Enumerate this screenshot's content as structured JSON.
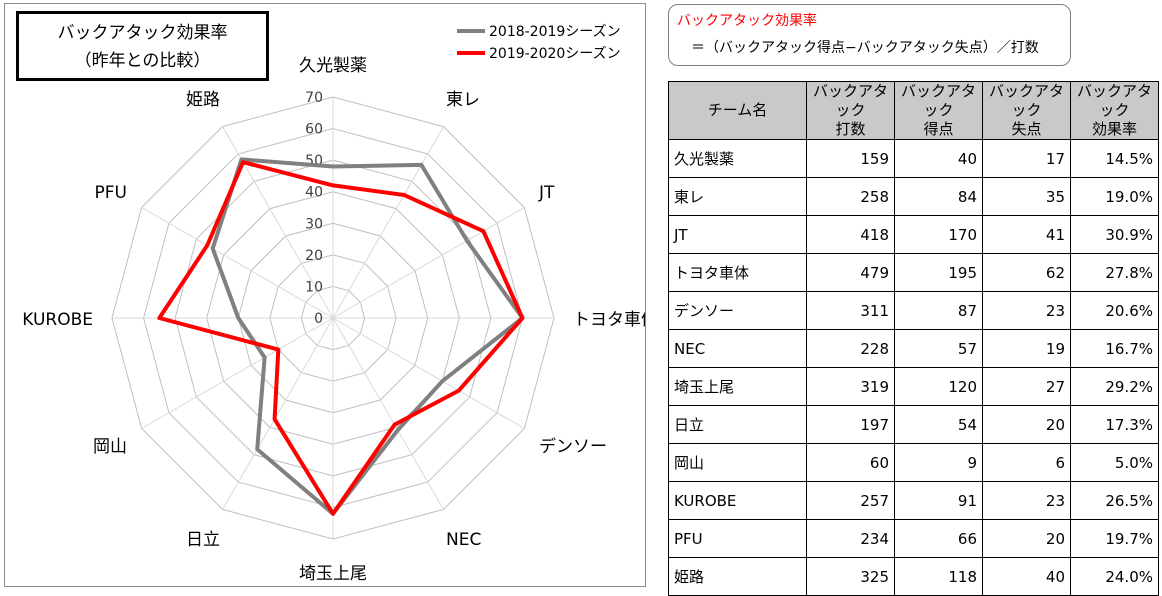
{
  "chart_title": [
    "バックアタック効果率",
    "（昨年との比較）"
  ],
  "legend": [
    {
      "label": "2018-2019シーズン",
      "color": "#808080"
    },
    {
      "label": "2019-2020シーズン",
      "color": "#ff0000"
    }
  ],
  "chart_data": {
    "type": "radar",
    "categories": [
      "久光製薬",
      "東レ",
      "JT",
      "トヨタ車体",
      "デンソー",
      "NEC",
      "埼玉上尾",
      "日立",
      "岡山",
      "KUROBE",
      "PFU",
      "姫路"
    ],
    "r_ticks": [
      "0",
      "10",
      "20",
      "30",
      "40",
      "50",
      "60",
      "70"
    ],
    "rlim": [
      0,
      70
    ],
    "series": [
      {
        "name": "2018-2019シーズン",
        "color": "#808080",
        "values": [
          48,
          56,
          49,
          60,
          40,
          41,
          62,
          48,
          25,
          30,
          44,
          58
        ]
      },
      {
        "name": "2019-2020シーズン",
        "color": "#ff0000",
        "values": [
          42,
          45,
          55,
          60,
          46,
          39,
          62,
          37,
          20,
          55,
          46,
          57
        ]
      }
    ]
  },
  "formula": {
    "title": "バックアタック効果率",
    "body": "＝（バックアタック得点−バックアタック失点）／打数"
  },
  "table": {
    "headers": [
      [
        "チーム名"
      ],
      [
        "バックアタック",
        "打数"
      ],
      [
        "バックアタック",
        "得点"
      ],
      [
        "バックアタック",
        "失点"
      ],
      [
        "バックアタック",
        "効果率"
      ]
    ],
    "rows": [
      [
        "久光製薬",
        "159",
        "40",
        "17",
        "14.5%"
      ],
      [
        "東レ",
        "258",
        "84",
        "35",
        "19.0%"
      ],
      [
        "JT",
        "418",
        "170",
        "41",
        "30.9%"
      ],
      [
        "トヨタ車体",
        "479",
        "195",
        "62",
        "27.8%"
      ],
      [
        "デンソー",
        "311",
        "87",
        "23",
        "20.6%"
      ],
      [
        "NEC",
        "228",
        "57",
        "19",
        "16.7%"
      ],
      [
        "埼玉上尾",
        "319",
        "120",
        "27",
        "29.2%"
      ],
      [
        "日立",
        "197",
        "54",
        "20",
        "17.3%"
      ],
      [
        "岡山",
        "60",
        "9",
        "6",
        "5.0%"
      ],
      [
        "KUROBE",
        "257",
        "91",
        "23",
        "26.5%"
      ],
      [
        "PFU",
        "234",
        "66",
        "20",
        "19.7%"
      ],
      [
        "姫路",
        "325",
        "118",
        "40",
        "24.0%"
      ]
    ]
  }
}
